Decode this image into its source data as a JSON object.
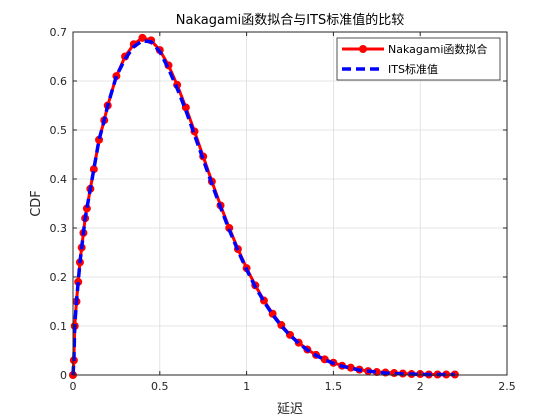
{
  "chart_data": {
    "type": "line",
    "title": "Nakagami函数拟合与ITS标准值的比较",
    "xlabel": "延迟",
    "ylabel": "CDF",
    "xlim": [
      0,
      2.5
    ],
    "ylim": [
      0,
      0.7
    ],
    "xticks": [
      0,
      0.5,
      1,
      1.5,
      2,
      2.5
    ],
    "xtick_labels": [
      "0",
      "0.5",
      "1",
      "1.5",
      "2",
      "2.5"
    ],
    "yticks": [
      0,
      0.1,
      0.2,
      0.3,
      0.4,
      0.5,
      0.6,
      0.7
    ],
    "ytick_labels": [
      "0",
      "0.1",
      "0.2",
      "0.3",
      "0.4",
      "0.5",
      "0.6",
      "0.7"
    ],
    "grid": true,
    "legend_position": "top-right",
    "series": [
      {
        "name": "Nakagami函数拟合",
        "color": "#ff0000",
        "style": "solid-circle-markers",
        "x": [
          0,
          0.005,
          0.01,
          0.02,
          0.03,
          0.04,
          0.05,
          0.06,
          0.07,
          0.08,
          0.1,
          0.12,
          0.15,
          0.18,
          0.2,
          0.25,
          0.3,
          0.35,
          0.4,
          0.45,
          0.5,
          0.55,
          0.6,
          0.65,
          0.7,
          0.75,
          0.8,
          0.85,
          0.9,
          0.95,
          1.0,
          1.05,
          1.1,
          1.15,
          1.2,
          1.25,
          1.3,
          1.35,
          1.4,
          1.45,
          1.5,
          1.55,
          1.6,
          1.65,
          1.7,
          1.75,
          1.8,
          1.85,
          1.9,
          1.95,
          2.0,
          2.05,
          2.1,
          2.15,
          2.2
        ],
        "y": [
          0.0,
          0.03,
          0.1,
          0.15,
          0.19,
          0.23,
          0.26,
          0.29,
          0.32,
          0.34,
          0.38,
          0.42,
          0.48,
          0.52,
          0.55,
          0.61,
          0.65,
          0.675,
          0.688,
          0.683,
          0.663,
          0.632,
          0.592,
          0.546,
          0.497,
          0.446,
          0.395,
          0.346,
          0.3,
          0.257,
          0.218,
          0.183,
          0.152,
          0.125,
          0.102,
          0.082,
          0.066,
          0.052,
          0.041,
          0.032,
          0.025,
          0.019,
          0.015,
          0.011,
          0.008,
          0.006,
          0.005,
          0.004,
          0.003,
          0.002,
          0.002,
          0.001,
          0.001,
          0.001,
          0.001
        ]
      },
      {
        "name": "ITS标准值",
        "color": "#0000ff",
        "style": "dashed",
        "x": [
          0,
          0.005,
          0.01,
          0.02,
          0.03,
          0.04,
          0.05,
          0.06,
          0.07,
          0.08,
          0.1,
          0.12,
          0.15,
          0.18,
          0.2,
          0.25,
          0.3,
          0.35,
          0.4,
          0.45,
          0.5,
          0.55,
          0.6,
          0.65,
          0.7,
          0.75,
          0.8,
          0.85,
          0.9,
          0.95,
          1.0,
          1.05,
          1.1,
          1.15,
          1.2,
          1.25,
          1.3,
          1.35,
          1.4,
          1.45,
          1.5,
          1.55,
          1.6,
          1.65,
          1.7,
          1.75,
          1.8,
          1.85,
          1.9,
          1.95,
          2.0,
          2.05,
          2.1,
          2.15,
          2.2
        ],
        "y": [
          0.0,
          0.03,
          0.1,
          0.15,
          0.19,
          0.23,
          0.26,
          0.29,
          0.32,
          0.34,
          0.38,
          0.42,
          0.48,
          0.52,
          0.55,
          0.61,
          0.645,
          0.67,
          0.682,
          0.68,
          0.66,
          0.625,
          0.585,
          0.54,
          0.49,
          0.44,
          0.39,
          0.342,
          0.296,
          0.254,
          0.215,
          0.18,
          0.15,
          0.123,
          0.1,
          0.081,
          0.065,
          0.051,
          0.04,
          0.031,
          0.024,
          0.018,
          0.014,
          0.01,
          0.008,
          0.006,
          0.004,
          0.003,
          0.002,
          0.002,
          0.001,
          0.001,
          0.001,
          0.001,
          0.001
        ]
      }
    ]
  }
}
